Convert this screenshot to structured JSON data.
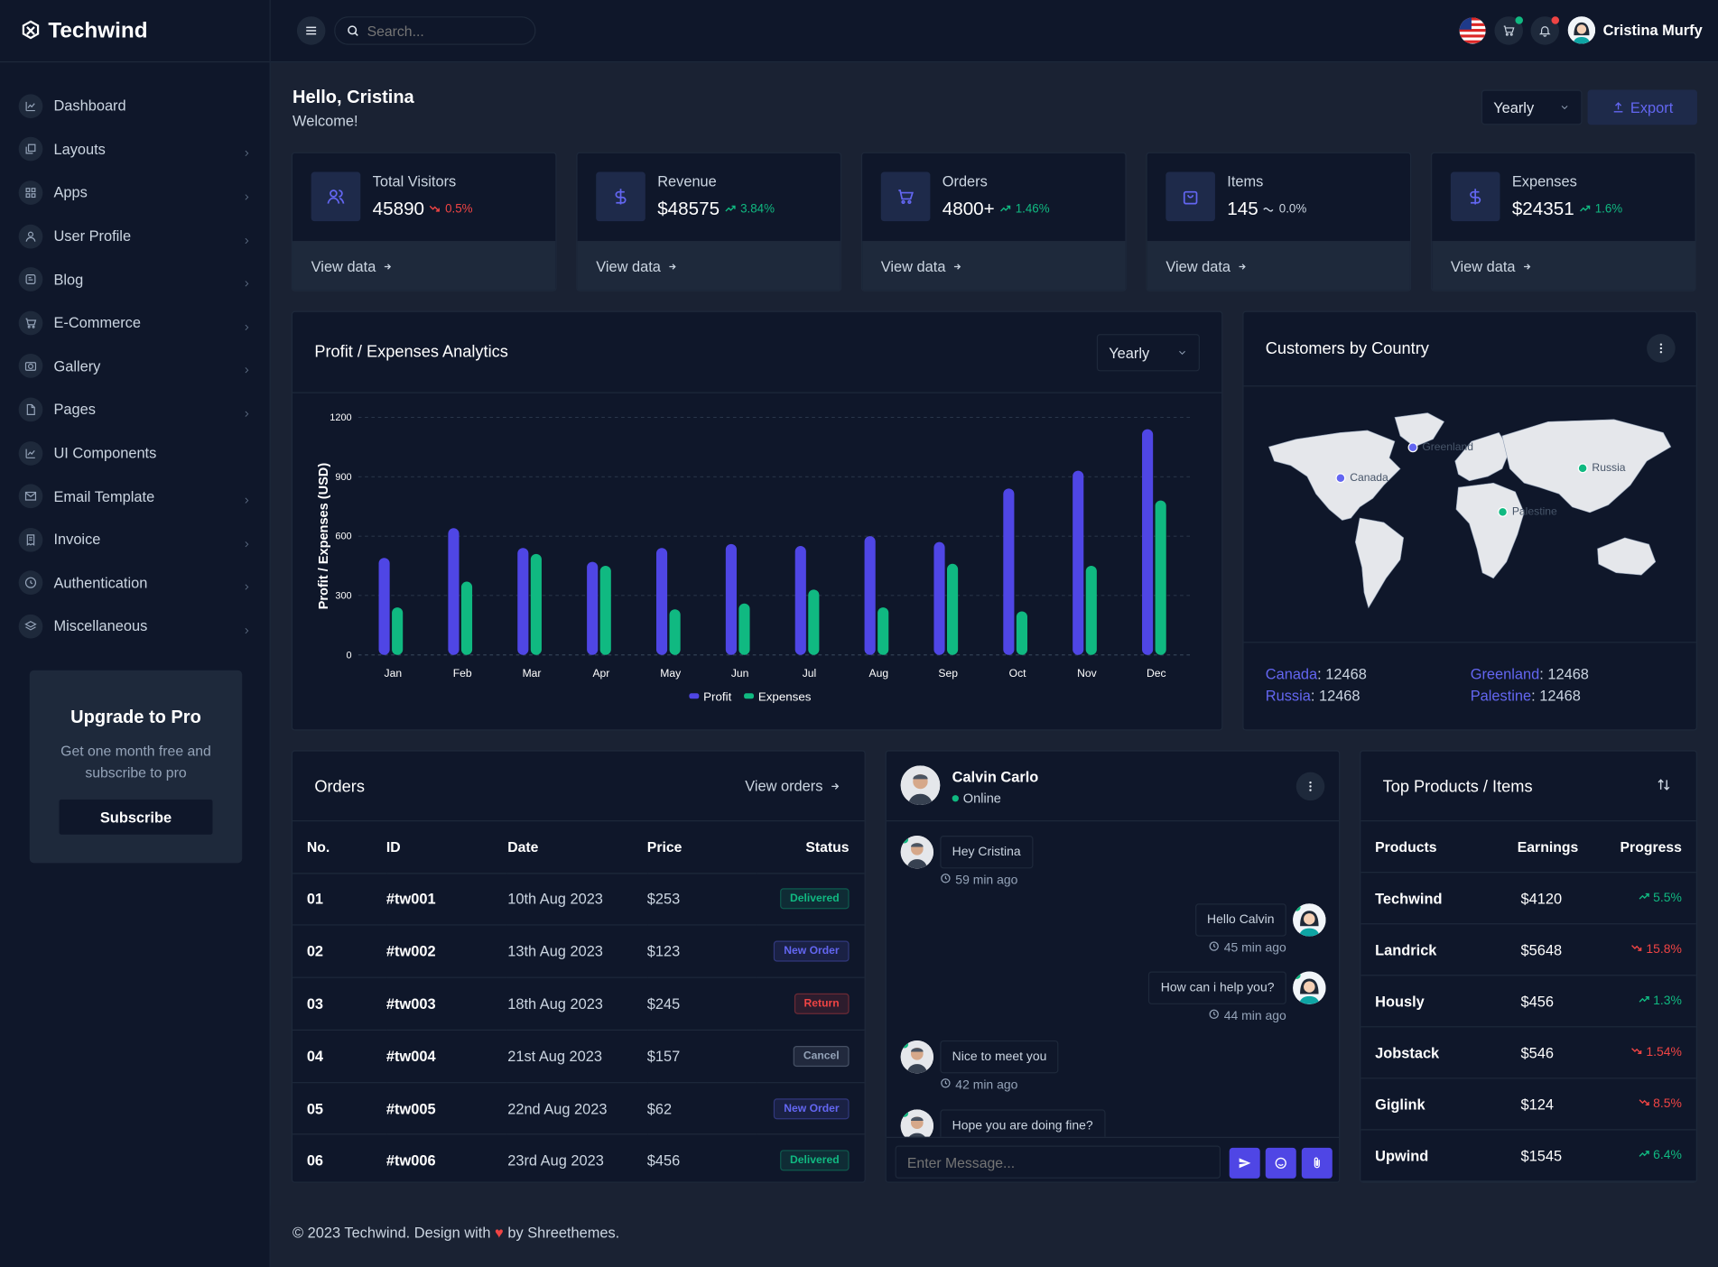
{
  "brand": {
    "name": "Techwind"
  },
  "sidebar": {
    "items": [
      {
        "label": "Dashboard",
        "icon": "chart-line-icon",
        "chevron": false
      },
      {
        "label": "Layouts",
        "icon": "layers-icon",
        "chevron": true
      },
      {
        "label": "Apps",
        "icon": "grid-icon",
        "chevron": true
      },
      {
        "label": "User Profile",
        "icon": "user-icon",
        "chevron": true
      },
      {
        "label": "Blog",
        "icon": "blog-icon",
        "chevron": true
      },
      {
        "label": "E-Commerce",
        "icon": "cart-icon",
        "chevron": true
      },
      {
        "label": "Gallery",
        "icon": "camera-icon",
        "chevron": true
      },
      {
        "label": "Pages",
        "icon": "file-icon",
        "chevron": true
      },
      {
        "label": "UI Components",
        "icon": "chart-line-icon",
        "chevron": false
      },
      {
        "label": "Email Template",
        "icon": "mail-icon",
        "chevron": true
      },
      {
        "label": "Invoice",
        "icon": "invoice-icon",
        "chevron": true
      },
      {
        "label": "Authentication",
        "icon": "lock-icon",
        "chevron": true
      },
      {
        "label": "Miscellaneous",
        "icon": "stack-icon",
        "chevron": true
      }
    ],
    "upgrade": {
      "title": "Upgrade to Pro",
      "text": "Get one month free and subscribe to pro",
      "button": "Subscribe"
    }
  },
  "topbar": {
    "search_placeholder": "Search...",
    "user_name": "Cristina Murfy"
  },
  "greeting": {
    "title": "Hello, Cristina",
    "subtitle": "Welcome!"
  },
  "header_controls": {
    "period": "Yearly",
    "export": "Export"
  },
  "stats": [
    {
      "title": "Total Visitors",
      "value": "45890",
      "change": "0.5%",
      "trend": "down",
      "link": "View data",
      "icon": "users-icon"
    },
    {
      "title": "Revenue",
      "value": "$48575",
      "change": "3.84%",
      "trend": "up",
      "link": "View data",
      "icon": "dollar-icon"
    },
    {
      "title": "Orders",
      "value": "4800+",
      "change": "1.46%",
      "trend": "up",
      "link": "View data",
      "icon": "cart-icon"
    },
    {
      "title": "Items",
      "value": "145",
      "change": "0.0%",
      "trend": "flat",
      "link": "View data",
      "icon": "bag-icon"
    },
    {
      "title": "Expenses",
      "value": "$24351",
      "change": "1.6%",
      "trend": "up",
      "link": "View data",
      "icon": "dollar-icon"
    }
  ],
  "analytics": {
    "title": "Profit / Expenses Analytics",
    "period": "Yearly"
  },
  "chart_data": {
    "type": "bar",
    "title": "Profit / Expenses Analytics",
    "xlabel": "",
    "ylabel": "Profit / Expenses (USD)",
    "ylim": [
      0,
      1200
    ],
    "yticks": [
      0,
      300,
      600,
      900,
      1200
    ],
    "categories": [
      "Jan",
      "Feb",
      "Mar",
      "Apr",
      "May",
      "Jun",
      "Jul",
      "Aug",
      "Sep",
      "Oct",
      "Nov",
      "Dec"
    ],
    "series": [
      {
        "name": "Profit",
        "color": "#4f46e5",
        "values": [
          490,
          640,
          540,
          470,
          540,
          560,
          550,
          600,
          570,
          840,
          930,
          1140
        ]
      },
      {
        "name": "Expenses",
        "color": "#10b981",
        "values": [
          240,
          370,
          510,
          450,
          230,
          260,
          330,
          240,
          460,
          220,
          450,
          780
        ]
      }
    ],
    "legend": "bottom",
    "grid": true
  },
  "customers": {
    "title": "Customers by Country",
    "markers": [
      {
        "label": "Greenland",
        "color": "#6366f1"
      },
      {
        "label": "Canada",
        "color": "#6366f1"
      },
      {
        "label": "Russia",
        "color": "#10b981"
      },
      {
        "label": "Palestine",
        "color": "#10b981"
      }
    ],
    "stats": [
      {
        "country": "Canada",
        "value": "12468"
      },
      {
        "country": "Greenland",
        "value": "12468"
      },
      {
        "country": "Russia",
        "value": "12468"
      },
      {
        "country": "Palestine",
        "value": "12468"
      }
    ]
  },
  "orders": {
    "title": "Orders",
    "view_link": "View orders",
    "columns": [
      "No.",
      "ID",
      "Date",
      "Price",
      "Status"
    ],
    "rows": [
      {
        "no": "01",
        "id": "#tw001",
        "date": "10th Aug 2023",
        "price": "$253",
        "status": "Delivered",
        "status_color": "#10b981"
      },
      {
        "no": "02",
        "id": "#tw002",
        "date": "13th Aug 2023",
        "price": "$123",
        "status": "New Order",
        "status_color": "#6366f1"
      },
      {
        "no": "03",
        "id": "#tw003",
        "date": "18th Aug 2023",
        "price": "$245",
        "status": "Return",
        "status_color": "#ef4444"
      },
      {
        "no": "04",
        "id": "#tw004",
        "date": "21st Aug 2023",
        "price": "$157",
        "status": "Cancel",
        "status_color": "#94a3b8"
      },
      {
        "no": "05",
        "id": "#tw005",
        "date": "22nd Aug 2023",
        "price": "$62",
        "status": "New Order",
        "status_color": "#6366f1"
      },
      {
        "no": "06",
        "id": "#tw006",
        "date": "23rd Aug 2023",
        "price": "$456",
        "status": "Delivered",
        "status_color": "#10b981"
      }
    ]
  },
  "chat": {
    "name": "Calvin Carlo",
    "status": "Online",
    "placeholder": "Enter Message...",
    "messages": [
      {
        "text": "Hey Cristina",
        "time": "59 min ago",
        "side": "left"
      },
      {
        "text": "Hello Calvin",
        "time": "45 min ago",
        "side": "right"
      },
      {
        "text": "How can i help you?",
        "time": "44 min ago",
        "side": "right"
      },
      {
        "text": "Nice to meet you",
        "time": "42 min ago",
        "side": "left"
      },
      {
        "text": "Hope you are doing fine?",
        "time": "",
        "side": "left"
      }
    ]
  },
  "products": {
    "title": "Top Products / Items",
    "columns": [
      "Products",
      "Earnings",
      "Progress"
    ],
    "rows": [
      {
        "name": "Techwind",
        "earnings": "$4120",
        "progress": "5.5%",
        "trend": "up"
      },
      {
        "name": "Landrick",
        "earnings": "$5648",
        "progress": "15.8%",
        "trend": "down"
      },
      {
        "name": "Hously",
        "earnings": "$456",
        "progress": "1.3%",
        "trend": "up"
      },
      {
        "name": "Jobstack",
        "earnings": "$546",
        "progress": "1.54%",
        "trend": "down"
      },
      {
        "name": "Giglink",
        "earnings": "$124",
        "progress": "8.5%",
        "trend": "down"
      },
      {
        "name": "Upwind",
        "earnings": "$1545",
        "progress": "6.4%",
        "trend": "up"
      }
    ]
  },
  "footer": {
    "prefix": "© 2023 Techwind. Design with",
    "suffix": "by Shreethemes."
  },
  "colors": {
    "accent": "#6366f1",
    "success": "#10b981",
    "danger": "#ef4444",
    "bg": "#1a2233",
    "card": "#0f172a"
  }
}
